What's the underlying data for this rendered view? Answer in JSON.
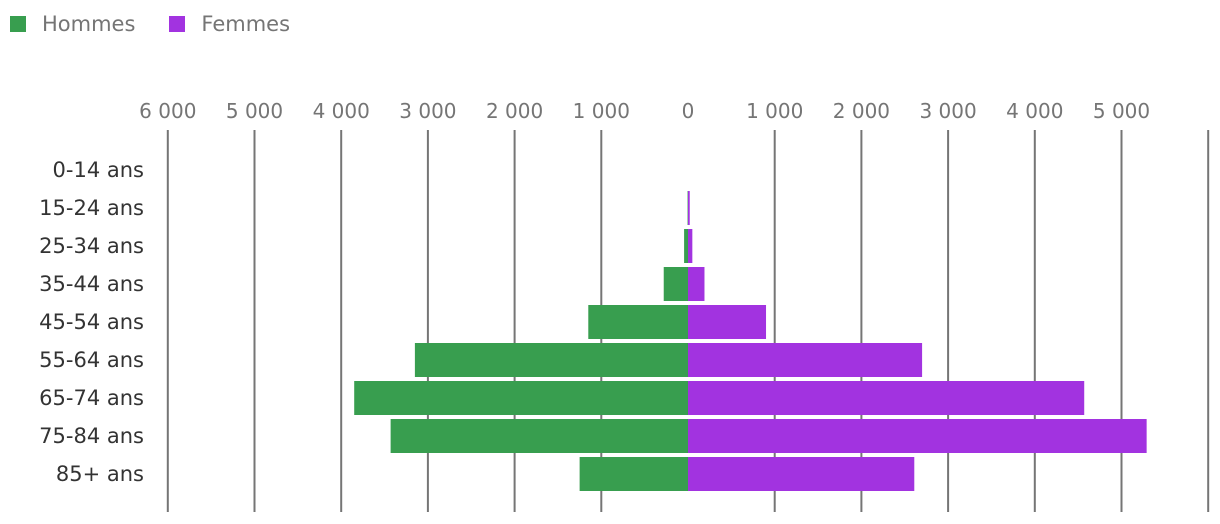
{
  "chart_data": {
    "type": "bar",
    "orientation": "horizontal",
    "layout": "population-pyramid",
    "categories": [
      "0-14 ans",
      "15-24 ans",
      "25-34 ans",
      "35-44 ans",
      "45-54 ans",
      "55-64 ans",
      "65-74 ans",
      "75-84 ans",
      "85+ ans"
    ],
    "series": [
      {
        "name": "Hommes",
        "color": "#389e4f",
        "side": "left",
        "values": [
          0,
          5,
          45,
          280,
          1150,
          3150,
          3850,
          3430,
          1250
        ]
      },
      {
        "name": "Femmes",
        "color": "#a233e0",
        "side": "right",
        "values": [
          0,
          20,
          50,
          190,
          900,
          2700,
          4570,
          5290,
          2610
        ]
      }
    ],
    "xlim": [
      -6000,
      6000
    ],
    "ticks": [
      {
        "value": -6000,
        "label": "6 000"
      },
      {
        "value": -5000,
        "label": "5 000"
      },
      {
        "value": -4000,
        "label": "4 000"
      },
      {
        "value": -3000,
        "label": "3 000"
      },
      {
        "value": -2000,
        "label": "2 000"
      },
      {
        "value": -1000,
        "label": "1 000"
      },
      {
        "value": 0,
        "label": "0"
      },
      {
        "value": 1000,
        "label": "1 000"
      },
      {
        "value": 2000,
        "label": "2 000"
      },
      {
        "value": 3000,
        "label": "3 000"
      },
      {
        "value": 4000,
        "label": "4 000"
      },
      {
        "value": 5000,
        "label": "5 000"
      },
      {
        "value": 6000,
        "label": ""
      }
    ],
    "legend_position": "top-left",
    "axis_position": "top",
    "grid": true,
    "gridline_color": "#757575"
  }
}
